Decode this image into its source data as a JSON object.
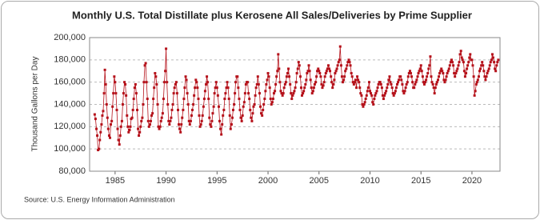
{
  "chart_data": {
    "type": "line",
    "title": "Monthly U.S. Total Distillate plus Kerosene All Sales/Deliveries by Prime Supplier",
    "y_label": "Thousand Gallons per Day",
    "source": "Source: U.S. Energy Information Administration",
    "xlim": [
      1982.5,
      2022.75
    ],
    "xticks": [
      1985,
      1990,
      1995,
      2000,
      2005,
      2010,
      2015,
      2020
    ],
    "ylim": [
      80000,
      200000
    ],
    "yticks": [
      {
        "value": 80000,
        "label": "80,000"
      },
      {
        "value": 100000,
        "label": "100,000"
      },
      {
        "value": 120000,
        "label": "120,000"
      },
      {
        "value": 140000,
        "label": "140,000"
      },
      {
        "value": 160000,
        "label": "160,000"
      },
      {
        "value": 180000,
        "label": "180,000"
      },
      {
        "value": 200000,
        "label": "200,000"
      }
    ],
    "grid": true,
    "x": [
      1983,
      1983.08,
      1983.17,
      1983.25,
      1983.33,
      1983.42,
      1983.5,
      1983.58,
      1983.67,
      1983.75,
      1983.83,
      1983.92,
      1984,
      1984.08,
      1984.17,
      1984.25,
      1984.33,
      1984.42,
      1984.5,
      1984.58,
      1984.67,
      1984.75,
      1984.83,
      1984.92,
      1985,
      1985.08,
      1985.17,
      1985.25,
      1985.33,
      1985.42,
      1985.5,
      1985.58,
      1985.67,
      1985.75,
      1985.83,
      1985.92,
      1986,
      1986.08,
      1986.17,
      1986.25,
      1986.33,
      1986.42,
      1986.5,
      1986.58,
      1986.67,
      1986.75,
      1986.83,
      1986.92,
      1987,
      1987.08,
      1987.17,
      1987.25,
      1987.33,
      1987.42,
      1987.5,
      1987.58,
      1987.67,
      1987.75,
      1987.83,
      1987.92,
      1988,
      1988.08,
      1988.17,
      1988.25,
      1988.33,
      1988.42,
      1988.5,
      1988.58,
      1988.67,
      1988.75,
      1988.83,
      1988.92,
      1989,
      1989.08,
      1989.17,
      1989.25,
      1989.33,
      1989.42,
      1989.5,
      1989.58,
      1989.67,
      1989.75,
      1989.83,
      1989.92,
      1990,
      1990.08,
      1990.17,
      1990.25,
      1990.33,
      1990.42,
      1990.5,
      1990.58,
      1990.67,
      1990.75,
      1990.83,
      1990.92,
      1991,
      1991.08,
      1991.17,
      1991.25,
      1991.33,
      1991.42,
      1991.5,
      1991.58,
      1991.67,
      1991.75,
      1991.83,
      1991.92,
      1992,
      1992.08,
      1992.17,
      1992.25,
      1992.33,
      1992.42,
      1992.5,
      1992.58,
      1992.67,
      1992.75,
      1992.83,
      1992.92,
      1993,
      1993.08,
      1993.17,
      1993.25,
      1993.33,
      1993.42,
      1993.5,
      1993.58,
      1993.67,
      1993.75,
      1993.83,
      1993.92,
      1994,
      1994.08,
      1994.17,
      1994.25,
      1994.33,
      1994.42,
      1994.5,
      1994.58,
      1994.67,
      1994.75,
      1994.83,
      1994.92,
      1995,
      1995.08,
      1995.17,
      1995.25,
      1995.33,
      1995.42,
      1995.5,
      1995.58,
      1995.67,
      1995.75,
      1995.83,
      1995.92,
      1996,
      1996.08,
      1996.17,
      1996.25,
      1996.33,
      1996.42,
      1996.5,
      1996.58,
      1996.67,
      1996.75,
      1996.83,
      1996.92,
      1997,
      1997.08,
      1997.17,
      1997.25,
      1997.33,
      1997.42,
      1997.5,
      1997.58,
      1997.67,
      1997.75,
      1997.83,
      1997.92,
      1998,
      1998.08,
      1998.17,
      1998.25,
      1998.33,
      1998.42,
      1998.5,
      1998.58,
      1998.67,
      1998.75,
      1998.83,
      1998.92,
      1999,
      1999.08,
      1999.17,
      1999.25,
      1999.33,
      1999.42,
      1999.5,
      1999.58,
      1999.67,
      1999.75,
      1999.83,
      1999.92,
      2000,
      2000.08,
      2000.17,
      2000.25,
      2000.33,
      2000.42,
      2000.5,
      2000.58,
      2000.67,
      2000.75,
      2000.83,
      2000.92,
      2001,
      2001.08,
      2001.17,
      2001.25,
      2001.33,
      2001.42,
      2001.5,
      2001.58,
      2001.67,
      2001.75,
      2001.83,
      2001.92,
      2002,
      2002.08,
      2002.17,
      2002.25,
      2002.33,
      2002.42,
      2002.5,
      2002.58,
      2002.67,
      2002.75,
      2002.83,
      2002.92,
      2003,
      2003.08,
      2003.17,
      2003.25,
      2003.33,
      2003.42,
      2003.5,
      2003.58,
      2003.67,
      2003.75,
      2003.83,
      2003.92,
      2004,
      2004.08,
      2004.17,
      2004.25,
      2004.33,
      2004.42,
      2004.5,
      2004.58,
      2004.67,
      2004.75,
      2004.83,
      2004.92,
      2005,
      2005.08,
      2005.17,
      2005.25,
      2005.33,
      2005.42,
      2005.5,
      2005.58,
      2005.67,
      2005.75,
      2005.83,
      2005.92,
      2006,
      2006.08,
      2006.17,
      2006.25,
      2006.33,
      2006.42,
      2006.5,
      2006.58,
      2006.67,
      2006.75,
      2006.83,
      2006.92,
      2007,
      2007.08,
      2007.17,
      2007.25,
      2007.33,
      2007.42,
      2007.5,
      2007.58,
      2007.67,
      2007.75,
      2007.83,
      2007.92,
      2008,
      2008.08,
      2008.17,
      2008.25,
      2008.33,
      2008.42,
      2008.5,
      2008.58,
      2008.67,
      2008.75,
      2008.83,
      2008.92,
      2009,
      2009.08,
      2009.17,
      2009.25,
      2009.33,
      2009.42,
      2009.5,
      2009.58,
      2009.67,
      2009.75,
      2009.83,
      2009.92,
      2010,
      2010.08,
      2010.17,
      2010.25,
      2010.33,
      2010.42,
      2010.5,
      2010.58,
      2010.67,
      2010.75,
      2010.83,
      2010.92,
      2011,
      2011.08,
      2011.17,
      2011.25,
      2011.33,
      2011.42,
      2011.5,
      2011.58,
      2011.67,
      2011.75,
      2011.83,
      2011.92,
      2012,
      2012.08,
      2012.17,
      2012.25,
      2012.33,
      2012.42,
      2012.5,
      2012.58,
      2012.67,
      2012.75,
      2012.83,
      2012.92,
      2013,
      2013.08,
      2013.17,
      2013.25,
      2013.33,
      2013.42,
      2013.5,
      2013.58,
      2013.67,
      2013.75,
      2013.83,
      2013.92,
      2014,
      2014.08,
      2014.17,
      2014.25,
      2014.33,
      2014.42,
      2014.5,
      2014.58,
      2014.67,
      2014.75,
      2014.83,
      2014.92,
      2015,
      2015.08,
      2015.17,
      2015.25,
      2015.33,
      2015.42,
      2015.5,
      2015.58,
      2015.67,
      2015.75,
      2015.83,
      2015.92,
      2016,
      2016.08,
      2016.17,
      2016.25,
      2016.33,
      2016.42,
      2016.5,
      2016.58,
      2016.67,
      2016.75,
      2016.83,
      2016.92,
      2017,
      2017.08,
      2017.17,
      2017.25,
      2017.33,
      2017.42,
      2017.5,
      2017.58,
      2017.67,
      2017.75,
      2017.83,
      2017.92,
      2018,
      2018.08,
      2018.17,
      2018.25,
      2018.33,
      2018.42,
      2018.5,
      2018.58,
      2018.67,
      2018.75,
      2018.83,
      2018.92,
      2019,
      2019.08,
      2019.17,
      2019.25,
      2019.33,
      2019.42,
      2019.5,
      2019.58,
      2019.67,
      2019.75,
      2019.83,
      2019.92,
      2020,
      2020.08,
      2020.17,
      2020.25,
      2020.33,
      2020.42,
      2020.5,
      2020.58,
      2020.67,
      2020.75,
      2020.83,
      2020.92,
      2021,
      2021.08,
      2021.17,
      2021.25,
      2021.33,
      2021.42,
      2021.5,
      2021.58,
      2021.67,
      2021.75,
      2021.83,
      2021.92,
      2022,
      2022.08,
      2022.17,
      2022.25,
      2022.33,
      2022.42,
      2022.5,
      2022.58
    ],
    "series": [
      {
        "color": "#b5121b",
        "values": [
          131000,
          127000,
          118000,
          112000,
          99000,
          100000,
          108000,
          115000,
          122000,
          130000,
          134000,
          150000,
          171000,
          158000,
          140000,
          128000,
          118000,
          112000,
          110000,
          122000,
          125000,
          138000,
          150000,
          165000,
          160000,
          150000,
          135000,
          118000,
          108000,
          104000,
          112000,
          120000,
          125000,
          140000,
          150000,
          160000,
          158000,
          148000,
          130000,
          120000,
          115000,
          117000,
          120000,
          127000,
          128000,
          135000,
          145000,
          155000,
          158000,
          150000,
          135000,
          118000,
          112000,
          115000,
          120000,
          125000,
          128000,
          140000,
          160000,
          175000,
          177000,
          160000,
          145000,
          125000,
          120000,
          122000,
          125000,
          130000,
          132000,
          145000,
          155000,
          168000,
          165000,
          158000,
          140000,
          120000,
          118000,
          120000,
          125000,
          128000,
          132000,
          145000,
          160000,
          170000,
          190000,
          160000,
          140000,
          125000,
          122000,
          125000,
          128000,
          135000,
          140000,
          150000,
          155000,
          158000,
          160000,
          150000,
          135000,
          122000,
          118000,
          115000,
          122000,
          128000,
          135000,
          145000,
          155000,
          165000,
          162000,
          150000,
          140000,
          125000,
          122000,
          125000,
          130000,
          135000,
          140000,
          148000,
          155000,
          162000,
          160000,
          155000,
          145000,
          130000,
          120000,
          122000,
          125000,
          130000,
          138000,
          145000,
          152000,
          158000,
          165000,
          160000,
          145000,
          128000,
          122000,
          120000,
          125000,
          132000,
          138000,
          150000,
          155000,
          160000,
          155000,
          148000,
          138000,
          125000,
          118000,
          113000,
          122000,
          130000,
          135000,
          145000,
          150000,
          155000,
          160000,
          155000,
          145000,
          130000,
          118000,
          122000,
          128000,
          135000,
          140000,
          150000,
          160000,
          165000,
          165000,
          155000,
          145000,
          135000,
          128000,
          125000,
          130000,
          138000,
          142000,
          150000,
          158000,
          160000,
          160000,
          150000,
          145000,
          135000,
          128000,
          125000,
          132000,
          138000,
          140000,
          148000,
          155000,
          158000,
          165000,
          158000,
          150000,
          138000,
          132000,
          130000,
          135000,
          140000,
          145000,
          152000,
          158000,
          162000,
          168000,
          165000,
          155000,
          145000,
          140000,
          142000,
          145000,
          150000,
          152000,
          158000,
          165000,
          170000,
          185000,
          172000,
          160000,
          152000,
          150000,
          148000,
          150000,
          155000,
          158000,
          160000,
          165000,
          168000,
          172000,
          165000,
          158000,
          150000,
          145000,
          148000,
          150000,
          152000,
          155000,
          160000,
          168000,
          172000,
          178000,
          175000,
          165000,
          155000,
          148000,
          150000,
          152000,
          155000,
          158000,
          162000,
          168000,
          170000,
          175000,
          170000,
          162000,
          155000,
          150000,
          152000,
          155000,
          158000,
          160000,
          165000,
          170000,
          172000,
          170000,
          168000,
          165000,
          158000,
          155000,
          157000,
          160000,
          165000,
          168000,
          170000,
          172000,
          175000,
          172000,
          170000,
          165000,
          160000,
          155000,
          158000,
          162000,
          168000,
          170000,
          172000,
          175000,
          178000,
          180000,
          192000,
          175000,
          165000,
          160000,
          162000,
          165000,
          170000,
          172000,
          175000,
          178000,
          180000,
          178000,
          175000,
          168000,
          165000,
          160000,
          158000,
          160000,
          162000,
          155000,
          165000,
          162000,
          160000,
          155000,
          150000,
          148000,
          140000,
          138000,
          140000,
          142000,
          145000,
          148000,
          152000,
          155000,
          160000,
          152000,
          150000,
          148000,
          142000,
          140000,
          145000,
          148000,
          150000,
          152000,
          155000,
          158000,
          160000,
          160000,
          158000,
          155000,
          148000,
          145000,
          148000,
          150000,
          152000,
          155000,
          158000,
          162000,
          165000,
          160000,
          158000,
          155000,
          150000,
          148000,
          150000,
          152000,
          155000,
          158000,
          160000,
          162000,
          165000,
          165000,
          162000,
          158000,
          152000,
          150000,
          152000,
          155000,
          158000,
          160000,
          165000,
          168000,
          170000,
          168000,
          165000,
          160000,
          155000,
          155000,
          158000,
          160000,
          162000,
          165000,
          168000,
          170000,
          172000,
          175000,
          170000,
          165000,
          160000,
          158000,
          160000,
          162000,
          165000,
          168000,
          172000,
          175000,
          183000,
          165000,
          160000,
          158000,
          155000,
          150000,
          155000,
          158000,
          160000,
          162000,
          165000,
          168000,
          170000,
          172000,
          170000,
          168000,
          162000,
          160000,
          162000,
          165000,
          168000,
          170000,
          172000,
          175000,
          178000,
          180000,
          178000,
          175000,
          168000,
          165000,
          168000,
          170000,
          172000,
          175000,
          178000,
          185000,
          188000,
          182000,
          180000,
          178000,
          170000,
          165000,
          168000,
          172000,
          175000,
          178000,
          182000,
          185000,
          180000,
          180000,
          175000,
          165000,
          148000,
          152000,
          158000,
          160000,
          162000,
          165000,
          170000,
          172000,
          175000,
          178000,
          175000,
          170000,
          165000,
          162000,
          165000,
          168000,
          170000,
          172000,
          175000,
          178000,
          180000,
          185000,
          182000,
          178000,
          172000,
          170000,
          175000,
          178000,
          180000
        ]
      }
    ]
  }
}
